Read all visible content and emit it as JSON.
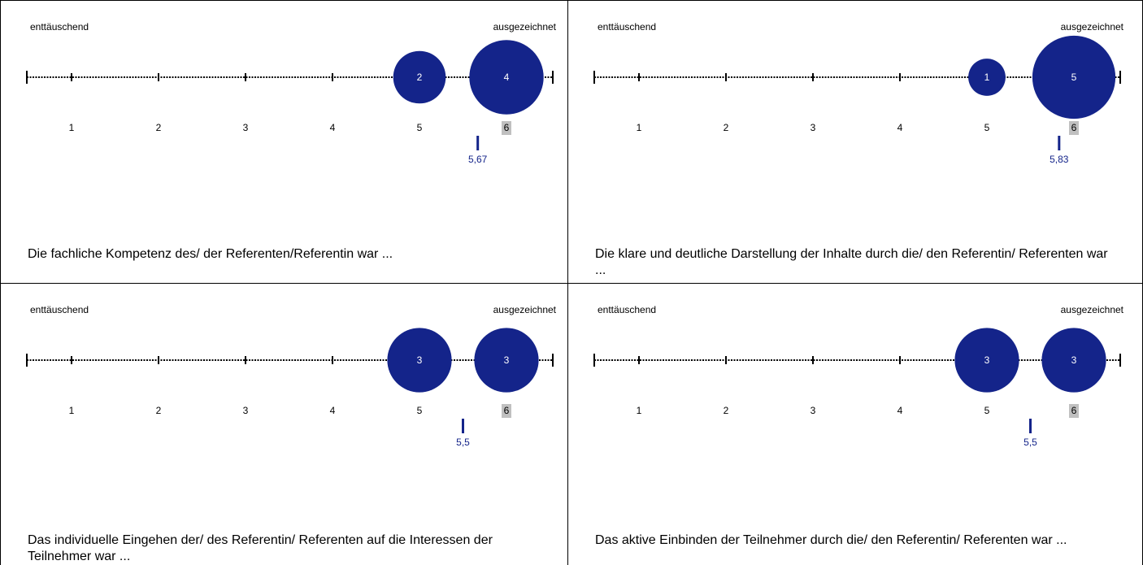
{
  "colors": {
    "bubble": "#14248a",
    "bubble_text": "#ffffff",
    "mean": "#14248a",
    "max_tick_bg": "#c0c0c0",
    "axis": "#000000"
  },
  "chart_data": [
    {
      "type": "scatter",
      "scale_left_label": "enttäuschend",
      "scale_right_label": "ausgezeichnet",
      "ticks": [
        "1",
        "2",
        "3",
        "4",
        "5",
        "6"
      ],
      "xlim": [
        1,
        6
      ],
      "counts": [
        {
          "x": 5,
          "n": 2
        },
        {
          "x": 6,
          "n": 4
        }
      ],
      "mean": 5.67,
      "mean_label": "5,67",
      "question": "Die fachliche Kompetenz des/ der Referenten/Referentin war ..."
    },
    {
      "type": "scatter",
      "scale_left_label": "enttäuschend",
      "scale_right_label": "ausgezeichnet",
      "ticks": [
        "1",
        "2",
        "3",
        "4",
        "5",
        "6"
      ],
      "xlim": [
        1,
        6
      ],
      "counts": [
        {
          "x": 5,
          "n": 1
        },
        {
          "x": 6,
          "n": 5
        }
      ],
      "mean": 5.83,
      "mean_label": "5,83",
      "question": "Die klare und deutliche Darstellung der Inhalte durch die/ den Referentin/ Referenten war ..."
    },
    {
      "type": "scatter",
      "scale_left_label": "enttäuschend",
      "scale_right_label": "ausgezeichnet",
      "ticks": [
        "1",
        "2",
        "3",
        "4",
        "5",
        "6"
      ],
      "xlim": [
        1,
        6
      ],
      "counts": [
        {
          "x": 5,
          "n": 3
        },
        {
          "x": 6,
          "n": 3
        }
      ],
      "mean": 5.5,
      "mean_label": "5,5",
      "question": "Das individuelle Eingehen der/ des Referentin/ Referenten auf die Interessen der Teilnehmer war ..."
    },
    {
      "type": "scatter",
      "scale_left_label": "enttäuschend",
      "scale_right_label": "ausgezeichnet",
      "ticks": [
        "1",
        "2",
        "3",
        "4",
        "5",
        "6"
      ],
      "xlim": [
        1,
        6
      ],
      "counts": [
        {
          "x": 5,
          "n": 3
        },
        {
          "x": 6,
          "n": 3
        }
      ],
      "mean": 5.5,
      "mean_label": "5,5",
      "question": "Das aktive Einbinden der Teilnehmer durch die/ den Referentin/ Referenten war ..."
    }
  ]
}
